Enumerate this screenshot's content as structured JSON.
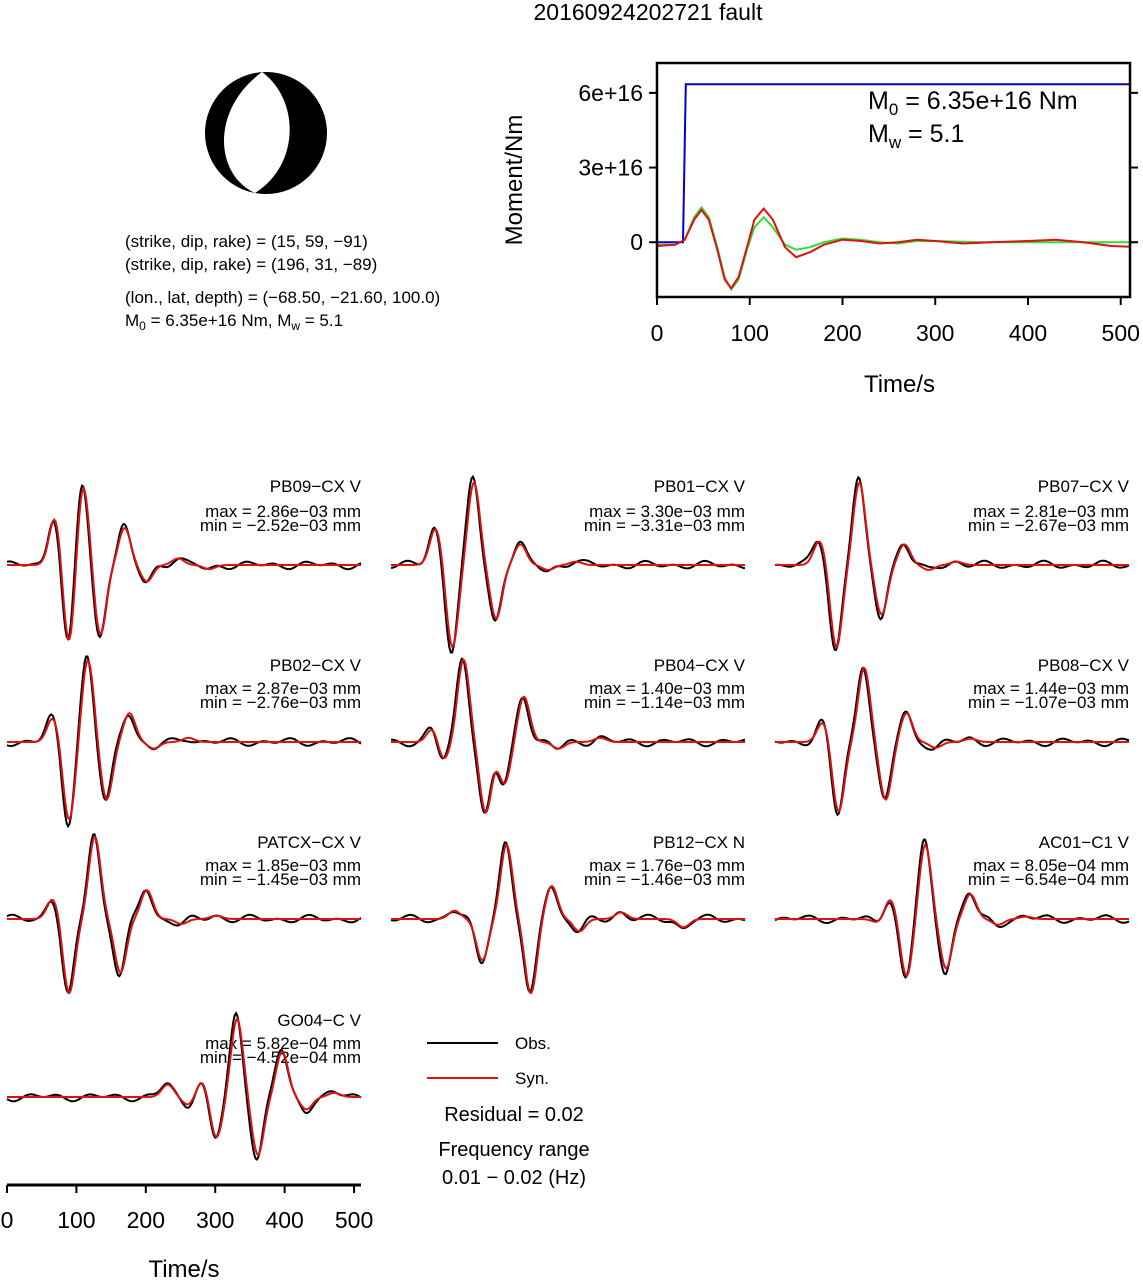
{
  "title": "20160924202721 fault",
  "beachball": {
    "colors": {
      "compression": "#000000",
      "dilatation": "#ffffff"
    }
  },
  "info": {
    "line1": "(strike, dip, rake) = (15, 59, −91)",
    "line2": "(strike, dip, rake) = (196, 31, −89)",
    "line3": "(lon., lat, depth) = (−68.50, −21.60, 100.0)",
    "m0_main": "M",
    "m0_sub": "0",
    "m0_val": " = 6.35e+16 Nm, M",
    "mw_sub": "w",
    "mw_val": " = 5.1"
  },
  "moment_annotation": {
    "m0_main": "M",
    "m0_sub": "0",
    "m0_val": " = 6.35e+16 Nm",
    "mw_main": "M",
    "mw_sub": "w",
    "mw_val": " = 5.1"
  },
  "legend": {
    "obs": "Obs.",
    "syn": "Syn.",
    "residual": "Residual = 0.02",
    "freq_title": "Frequency range",
    "freq_range": "0.01 − 0.02 (Hz)"
  },
  "chart_data": [
    {
      "type": "line",
      "id": "moment",
      "xlabel": "Time/s",
      "ylabel": "Moment/Nm",
      "xlim": [
        0,
        510
      ],
      "ylim": [
        -2.2e+16,
        7.2e+16
      ],
      "xticks": [
        0,
        100,
        200,
        300,
        400,
        500
      ],
      "xtick_labels": [
        "0",
        "100",
        "200",
        "300",
        "400",
        "500"
      ],
      "yticks": [
        0,
        3e+16,
        6e+16
      ],
      "ytick_labels": [
        "0",
        "3e+16",
        "6e+16"
      ],
      "series": [
        {
          "color": "#0000cc",
          "x": [
            0,
            28,
            31,
            510
          ],
          "y": [
            0,
            0,
            6.35e+16,
            6.35e+16
          ]
        },
        {
          "color": "#33dd33",
          "x": [
            0,
            20,
            30,
            40,
            48,
            56,
            65,
            73,
            80,
            88,
            97,
            105,
            115,
            125,
            138,
            150,
            165,
            180,
            200,
            220,
            240,
            260,
            280,
            300,
            350,
            400,
            450,
            510
          ],
          "y": [
            -1000000000000000.0,
            -1000000000000000.0,
            1000000000000000.0,
            1e+16,
            1.4e+16,
            1e+16,
            -2000000000000000.0,
            -1.4e+16,
            -1.9e+16,
            -1.5e+16,
            -3000000000000000.0,
            6000000000000000.0,
            1e+16,
            6000000000000000.0,
            -1000000000000000.0,
            -3000000000000000.0,
            -2000000000000000.0,
            0,
            1500000000000000.0,
            1000000000000000.0,
            0,
            -500000000000000.0,
            500000000000000.0,
            500000000000000.0,
            0,
            0,
            0,
            0
          ]
        },
        {
          "color": "#dd1111",
          "x": [
            0,
            20,
            30,
            40,
            48,
            56,
            65,
            73,
            80,
            88,
            97,
            105,
            115,
            125,
            138,
            150,
            165,
            180,
            200,
            220,
            240,
            260,
            280,
            300,
            330,
            360,
            400,
            430,
            460,
            490,
            510
          ],
          "y": [
            -1500000000000000.0,
            -1000000000000000.0,
            1000000000000000.0,
            9000000000000000.0,
            1.3e+16,
            9000000000000000.0,
            -3000000000000000.0,
            -1.5e+16,
            -1.85e+16,
            -1.4e+16,
            -2000000000000000.0,
            9000000000000000.0,
            1.35e+16,
            9000000000000000.0,
            -2000000000000000.0,
            -6000000000000000.0,
            -4000000000000000.0,
            -1000000000000000.0,
            1000000000000000.0,
            500000000000000.0,
            -500000000000000.0,
            0,
            1000000000000000.0,
            500000000000000.0,
            -500000000000000.0,
            0,
            500000000000000.0,
            1000000000000000.0,
            0,
            -1500000000000000.0,
            -1800000000000000.0
          ]
        }
      ]
    },
    {
      "type": "line",
      "id": "waveforms",
      "xlabel": "Time/s",
      "xlim": [
        0,
        510
      ],
      "xticks": [
        0,
        100,
        200,
        300,
        400,
        500
      ],
      "xtick_labels": [
        "0",
        "100",
        "200",
        "300",
        "400",
        "500"
      ],
      "series_styles": [
        {
          "name": "Obs.",
          "color": "#000000"
        },
        {
          "name": "Syn.",
          "color": "#dd1111"
        }
      ],
      "stations": [
        {
          "name": "PB09−CX V",
          "max": "max = 2.86e−03 mm",
          "min": "min = −2.52e−03 mm",
          "maxv": 2.86,
          "minv": -2.52,
          "peaks": [
            [
              68,
              0.6
            ],
            [
              88,
              -1.0
            ],
            [
              108,
              1.0
            ],
            [
              133,
              -0.85
            ],
            [
              168,
              0.45
            ],
            [
              200,
              -0.2
            ],
            [
              245,
              0.08
            ],
            [
              290,
              -0.05
            ]
          ]
        },
        {
          "name": "PB01−CX V",
          "max": "max = 3.30e−03 mm",
          "min": "min = −3.31e−03 mm",
          "maxv": 3.3,
          "minv": -3.31,
          "peaks": [
            [
              63,
              0.45
            ],
            [
              87,
              -1.0
            ],
            [
              118,
              1.0
            ],
            [
              150,
              -0.65
            ],
            [
              185,
              0.25
            ],
            [
              225,
              -0.06
            ],
            [
              265,
              0.04
            ]
          ]
        },
        {
          "name": "PB07−CX V",
          "max": "max = 2.81e−03 mm",
          "min": "min = −2.67e−03 mm",
          "maxv": 2.81,
          "minv": -2.67,
          "peaks": [
            [
              63,
              0.3
            ],
            [
              87,
              -1.0
            ],
            [
              120,
              1.0
            ],
            [
              152,
              -0.6
            ],
            [
              185,
              0.25
            ],
            [
              220,
              -0.06
            ],
            [
              260,
              0.04
            ]
          ]
        },
        {
          "name": "PB02−CX V",
          "max": "max = 2.87e−03 mm",
          "min": "min = −2.76e−03 mm",
          "maxv": 2.87,
          "minv": -2.76,
          "peaks": [
            [
              65,
              0.3
            ],
            [
              88,
              -0.95
            ],
            [
              115,
              1.0
            ],
            [
              142,
              -0.7
            ],
            [
              175,
              0.35
            ],
            [
              210,
              -0.08
            ],
            [
              260,
              0.05
            ]
          ]
        },
        {
          "name": "PB04−CX V",
          "max": "max = 1.40e−03 mm",
          "min": "min = −1.14e−03 mm",
          "maxv": 1.4,
          "minv": -1.14,
          "peaks": [
            [
              60,
              0.2
            ],
            [
              73,
              -0.25
            ],
            [
              103,
              1.0
            ],
            [
              135,
              -0.85
            ],
            [
              162,
              -0.5
            ],
            [
              190,
              0.55
            ],
            [
              240,
              -0.08
            ],
            [
              300,
              0.05
            ]
          ]
        },
        {
          "name": "PB08−CX V",
          "max": "max = 1.44e−03 mm",
          "min": "min = −1.07e−03 mm",
          "maxv": 1.44,
          "minv": -1.07,
          "peaks": [
            [
              68,
              0.25
            ],
            [
              90,
              -0.85
            ],
            [
              127,
              0.9
            ],
            [
              158,
              -0.7
            ],
            [
              188,
              0.35
            ],
            [
              230,
              -0.07
            ],
            [
              280,
              0.04
            ]
          ]
        },
        {
          "name": "PATCX−CX V",
          "max": "max = 1.85e−03 mm",
          "min": "min = −1.45e−03 mm",
          "maxv": 1.85,
          "minv": -1.45,
          "peaks": [
            [
              65,
              0.25
            ],
            [
              88,
              -0.9
            ],
            [
              125,
              1.0
            ],
            [
              162,
              -0.65
            ],
            [
              200,
              0.35
            ],
            [
              250,
              -0.06
            ],
            [
              300,
              0.04
            ]
          ]
        },
        {
          "name": "PB12−CX N",
          "max": "max = 1.76e−03 mm",
          "min": "min = −1.46e−03 mm",
          "maxv": 1.76,
          "minv": -1.46,
          "peaks": [
            [
              90,
              0.1
            ],
            [
              130,
              -0.5
            ],
            [
              165,
              0.9
            ],
            [
              200,
              -0.9
            ],
            [
              230,
              0.4
            ],
            [
              270,
              -0.15
            ],
            [
              330,
              0.08
            ],
            [
              420,
              -0.1
            ]
          ]
        },
        {
          "name": "AC01−C1 V",
          "max": "max = 8.05e−04 mm",
          "min": "min = −6.54e−04 mm",
          "maxv": 0.805,
          "minv": -0.654,
          "peaks": [
            [
              148,
              -0.05
            ],
            [
              165,
              0.25
            ],
            [
              188,
              -0.7
            ],
            [
              215,
              0.9
            ],
            [
              245,
              -0.6
            ],
            [
              280,
              0.3
            ],
            [
              320,
              -0.07
            ],
            [
              360,
              0.03
            ]
          ]
        },
        {
          "name": "GO04−C V",
          "max": "max = 5.82e−04 mm",
          "min": "min = −4.52e−04 mm",
          "maxv": 0.582,
          "minv": -0.452,
          "peaks": [
            [
              230,
              0.15
            ],
            [
              260,
              -0.1
            ],
            [
              280,
              0.2
            ],
            [
              300,
              -0.5
            ],
            [
              330,
              0.95
            ],
            [
              360,
              -0.7
            ],
            [
              395,
              0.55
            ],
            [
              430,
              -0.15
            ],
            [
              470,
              0.05
            ]
          ]
        }
      ]
    }
  ]
}
